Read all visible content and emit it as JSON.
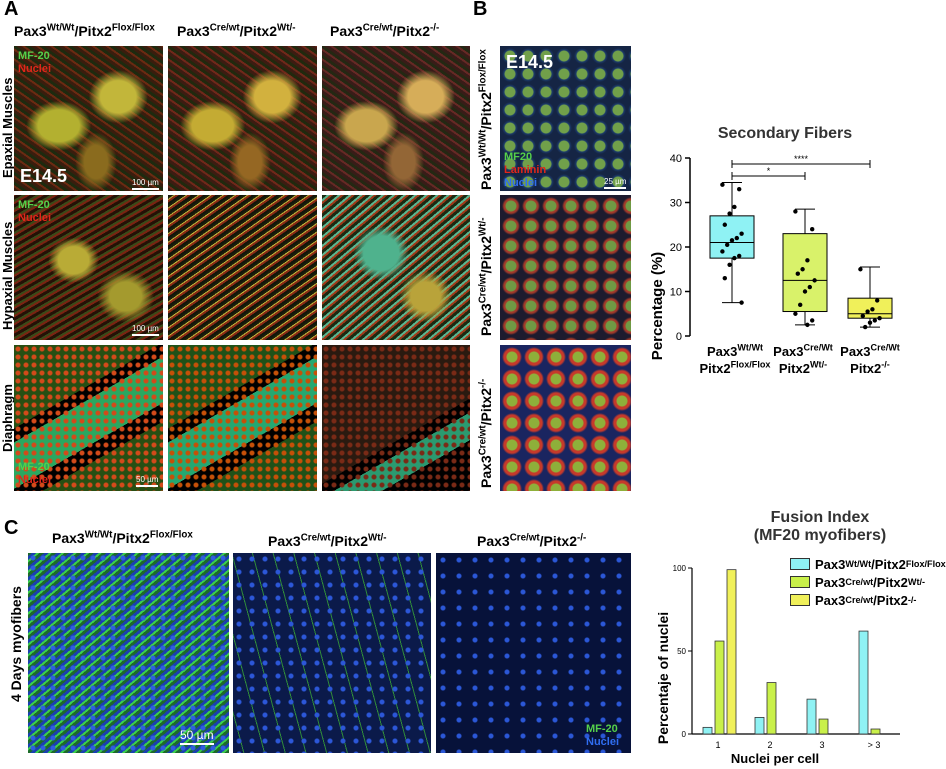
{
  "panels": {
    "A": "A",
    "B": "B",
    "C": "C"
  },
  "genotypes": {
    "g1": {
      "a": "Pax3",
      "a_sup": "Wt/Wt",
      "b": "/Pitx2",
      "b_sup": "Flox/Flox"
    },
    "g2": {
      "a": "Pax3",
      "a_sup": "Cre/wt",
      "b": "/Pitx2",
      "b_sup": "Wt/-"
    },
    "g3": {
      "a": "Pax3",
      "a_sup": "Cre/wt",
      "b": "/Pitx2",
      "b_sup": "-/-"
    }
  },
  "panelA": {
    "rows": [
      "Epaxial Muscles",
      "Hypaxial Muscles",
      "Diaphragm"
    ],
    "stage": "E14.5",
    "mf20": "MF-20",
    "nuclei": "Nuclei",
    "scale": "100 µm",
    "scale_dia": "50 µm"
  },
  "panelB": {
    "stage": "E14.5",
    "mf20": "MF20",
    "laminin": "Laminin",
    "nuclei": "Nuclei",
    "scale": "25 µm"
  },
  "panelC": {
    "row_label": "4 Days myofibers",
    "scale": "50 µm",
    "mf20": "MF-20",
    "nuclei": "Nuclei"
  },
  "chart_data": [
    {
      "type": "box",
      "title": "Secondary Fibers",
      "ylabel": "Percentage (%)",
      "ylim": [
        0,
        40
      ],
      "yticks": [
        0,
        10,
        20,
        30,
        40
      ],
      "categories": [
        {
          "l1a": "Pax3",
          "l1s": "Wt/Wt",
          "l2a": "Pitx2",
          "l2s": "Flox/Flox"
        },
        {
          "l1a": "Pax3",
          "l1s": "Cre/Wt",
          "l2a": "Pitx2",
          "l2s": "Wt/-"
        },
        {
          "l1a": "Pax3",
          "l1s": "Cre/Wt",
          "l2a": "Pitx2",
          "l2s": "-/-"
        }
      ],
      "colors": [
        "#8ff2f4",
        "#d9f26a",
        "#f0f05a"
      ],
      "boxes": [
        {
          "min": 7.5,
          "q1": 17.5,
          "median": 21,
          "q3": 27,
          "max": 34.5,
          "points": [
            34,
            33,
            29,
            27.5,
            25,
            23,
            22,
            21.5,
            20.5,
            19,
            18,
            17.5,
            16,
            13,
            7.5
          ]
        },
        {
          "min": 2.5,
          "q1": 5.5,
          "median": 12.5,
          "q3": 23,
          "max": 28.5,
          "points": [
            28,
            24,
            17,
            15,
            14,
            12.5,
            11,
            10,
            7,
            5,
            3.5,
            2.5
          ]
        },
        {
          "min": 2,
          "q1": 4,
          "median": 5,
          "q3": 8.5,
          "max": 15.5,
          "points": [
            15,
            8,
            6,
            5.5,
            4.5,
            4,
            3.5,
            3,
            2
          ]
        }
      ],
      "significance": [
        {
          "from": 0,
          "to": 2,
          "label": "****"
        },
        {
          "from": 0,
          "to": 1,
          "label": "*"
        }
      ]
    },
    {
      "type": "bar",
      "title": "Fusion Index",
      "subtitle": "(MF20 myofibers)",
      "xlabel": "Nuclei per cell",
      "ylabel": "Percentaje of nuclei",
      "ylim": [
        0,
        100
      ],
      "yticks": [
        0,
        50,
        100
      ],
      "categories": [
        "1",
        "2",
        "3",
        "> 3"
      ],
      "series": [
        {
          "name": "Pax3Wt/Wt/Pitx2Flox/Flox",
          "values": [
            4,
            10,
            21,
            62
          ],
          "color": "#8ff2f4"
        },
        {
          "name": "Pax3Cre/wt/Pitx2Wt/-",
          "values": [
            56,
            31,
            9,
            3
          ],
          "color": "#c9f04a"
        },
        {
          "name": "Pax3Cre/wt/Pitx2-/-",
          "values": [
            99,
            0,
            0,
            0
          ],
          "color": "#f0f05a"
        }
      ]
    }
  ]
}
